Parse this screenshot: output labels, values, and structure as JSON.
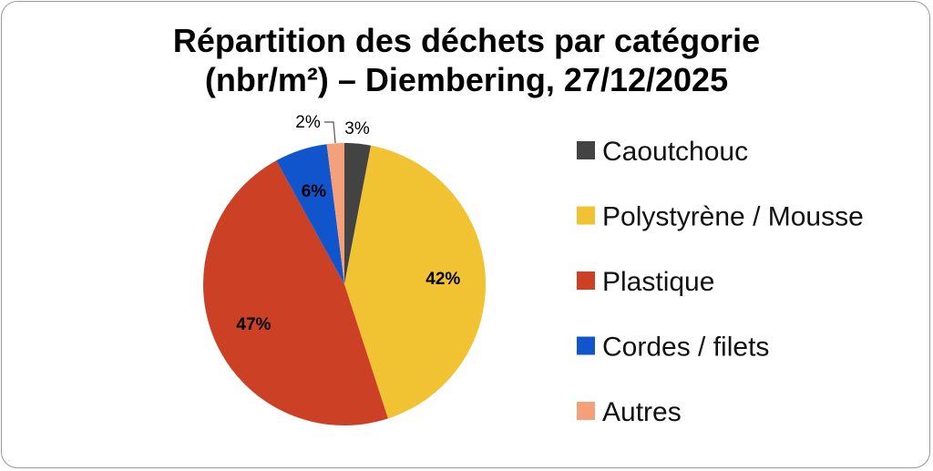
{
  "chart_data": {
    "type": "pie",
    "title_lines": [
      "Répartition des déchets par catégorie",
      "(nbr/m²) – Diembering, 27/12/2025"
    ],
    "categories": [
      "Caoutchouc",
      "Polystyrène / Mousse",
      "Plastique",
      "Cordes / filets",
      "Autres"
    ],
    "values": [
      3,
      42,
      47,
      6,
      2
    ],
    "labels": [
      "3%",
      "42%",
      "47%",
      "6%",
      "2%"
    ],
    "colors": [
      "#434343",
      "#F1C232",
      "#CC4125",
      "#1155CC",
      "#F4A07A"
    ],
    "legend_position": "right",
    "start": "top, clockwise"
  }
}
